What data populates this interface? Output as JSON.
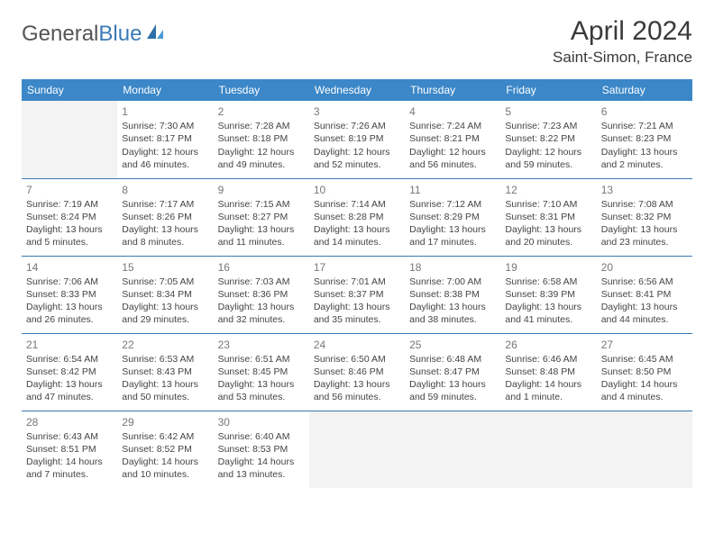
{
  "logo": {
    "text_gray": "General",
    "text_blue": "Blue"
  },
  "title": "April 2024",
  "location": "Saint-Simon, France",
  "colors": {
    "header_bg": "#3b87c8",
    "header_text": "#ffffff",
    "cell_border": "#3b7ab5",
    "empty_bg": "#f3f3f3",
    "logo_blue": "#3b7ab5",
    "body_text": "#3a3a3a"
  },
  "day_headers": [
    "Sunday",
    "Monday",
    "Tuesday",
    "Wednesday",
    "Thursday",
    "Friday",
    "Saturday"
  ],
  "weeks": [
    [
      {
        "empty": true
      },
      {
        "day": "1",
        "sunrise": "Sunrise: 7:30 AM",
        "sunset": "Sunset: 8:17 PM",
        "daylight": "Daylight: 12 hours and 46 minutes."
      },
      {
        "day": "2",
        "sunrise": "Sunrise: 7:28 AM",
        "sunset": "Sunset: 8:18 PM",
        "daylight": "Daylight: 12 hours and 49 minutes."
      },
      {
        "day": "3",
        "sunrise": "Sunrise: 7:26 AM",
        "sunset": "Sunset: 8:19 PM",
        "daylight": "Daylight: 12 hours and 52 minutes."
      },
      {
        "day": "4",
        "sunrise": "Sunrise: 7:24 AM",
        "sunset": "Sunset: 8:21 PM",
        "daylight": "Daylight: 12 hours and 56 minutes."
      },
      {
        "day": "5",
        "sunrise": "Sunrise: 7:23 AM",
        "sunset": "Sunset: 8:22 PM",
        "daylight": "Daylight: 12 hours and 59 minutes."
      },
      {
        "day": "6",
        "sunrise": "Sunrise: 7:21 AM",
        "sunset": "Sunset: 8:23 PM",
        "daylight": "Daylight: 13 hours and 2 minutes."
      }
    ],
    [
      {
        "day": "7",
        "sunrise": "Sunrise: 7:19 AM",
        "sunset": "Sunset: 8:24 PM",
        "daylight": "Daylight: 13 hours and 5 minutes."
      },
      {
        "day": "8",
        "sunrise": "Sunrise: 7:17 AM",
        "sunset": "Sunset: 8:26 PM",
        "daylight": "Daylight: 13 hours and 8 minutes."
      },
      {
        "day": "9",
        "sunrise": "Sunrise: 7:15 AM",
        "sunset": "Sunset: 8:27 PM",
        "daylight": "Daylight: 13 hours and 11 minutes."
      },
      {
        "day": "10",
        "sunrise": "Sunrise: 7:14 AM",
        "sunset": "Sunset: 8:28 PM",
        "daylight": "Daylight: 13 hours and 14 minutes."
      },
      {
        "day": "11",
        "sunrise": "Sunrise: 7:12 AM",
        "sunset": "Sunset: 8:29 PM",
        "daylight": "Daylight: 13 hours and 17 minutes."
      },
      {
        "day": "12",
        "sunrise": "Sunrise: 7:10 AM",
        "sunset": "Sunset: 8:31 PM",
        "daylight": "Daylight: 13 hours and 20 minutes."
      },
      {
        "day": "13",
        "sunrise": "Sunrise: 7:08 AM",
        "sunset": "Sunset: 8:32 PM",
        "daylight": "Daylight: 13 hours and 23 minutes."
      }
    ],
    [
      {
        "day": "14",
        "sunrise": "Sunrise: 7:06 AM",
        "sunset": "Sunset: 8:33 PM",
        "daylight": "Daylight: 13 hours and 26 minutes."
      },
      {
        "day": "15",
        "sunrise": "Sunrise: 7:05 AM",
        "sunset": "Sunset: 8:34 PM",
        "daylight": "Daylight: 13 hours and 29 minutes."
      },
      {
        "day": "16",
        "sunrise": "Sunrise: 7:03 AM",
        "sunset": "Sunset: 8:36 PM",
        "daylight": "Daylight: 13 hours and 32 minutes."
      },
      {
        "day": "17",
        "sunrise": "Sunrise: 7:01 AM",
        "sunset": "Sunset: 8:37 PM",
        "daylight": "Daylight: 13 hours and 35 minutes."
      },
      {
        "day": "18",
        "sunrise": "Sunrise: 7:00 AM",
        "sunset": "Sunset: 8:38 PM",
        "daylight": "Daylight: 13 hours and 38 minutes."
      },
      {
        "day": "19",
        "sunrise": "Sunrise: 6:58 AM",
        "sunset": "Sunset: 8:39 PM",
        "daylight": "Daylight: 13 hours and 41 minutes."
      },
      {
        "day": "20",
        "sunrise": "Sunrise: 6:56 AM",
        "sunset": "Sunset: 8:41 PM",
        "daylight": "Daylight: 13 hours and 44 minutes."
      }
    ],
    [
      {
        "day": "21",
        "sunrise": "Sunrise: 6:54 AM",
        "sunset": "Sunset: 8:42 PM",
        "daylight": "Daylight: 13 hours and 47 minutes."
      },
      {
        "day": "22",
        "sunrise": "Sunrise: 6:53 AM",
        "sunset": "Sunset: 8:43 PM",
        "daylight": "Daylight: 13 hours and 50 minutes."
      },
      {
        "day": "23",
        "sunrise": "Sunrise: 6:51 AM",
        "sunset": "Sunset: 8:45 PM",
        "daylight": "Daylight: 13 hours and 53 minutes."
      },
      {
        "day": "24",
        "sunrise": "Sunrise: 6:50 AM",
        "sunset": "Sunset: 8:46 PM",
        "daylight": "Daylight: 13 hours and 56 minutes."
      },
      {
        "day": "25",
        "sunrise": "Sunrise: 6:48 AM",
        "sunset": "Sunset: 8:47 PM",
        "daylight": "Daylight: 13 hours and 59 minutes."
      },
      {
        "day": "26",
        "sunrise": "Sunrise: 6:46 AM",
        "sunset": "Sunset: 8:48 PM",
        "daylight": "Daylight: 14 hours and 1 minute."
      },
      {
        "day": "27",
        "sunrise": "Sunrise: 6:45 AM",
        "sunset": "Sunset: 8:50 PM",
        "daylight": "Daylight: 14 hours and 4 minutes."
      }
    ],
    [
      {
        "day": "28",
        "sunrise": "Sunrise: 6:43 AM",
        "sunset": "Sunset: 8:51 PM",
        "daylight": "Daylight: 14 hours and 7 minutes."
      },
      {
        "day": "29",
        "sunrise": "Sunrise: 6:42 AM",
        "sunset": "Sunset: 8:52 PM",
        "daylight": "Daylight: 14 hours and 10 minutes."
      },
      {
        "day": "30",
        "sunrise": "Sunrise: 6:40 AM",
        "sunset": "Sunset: 8:53 PM",
        "daylight": "Daylight: 14 hours and 13 minutes."
      },
      {
        "empty": true
      },
      {
        "empty": true
      },
      {
        "empty": true
      },
      {
        "empty": true
      }
    ]
  ]
}
